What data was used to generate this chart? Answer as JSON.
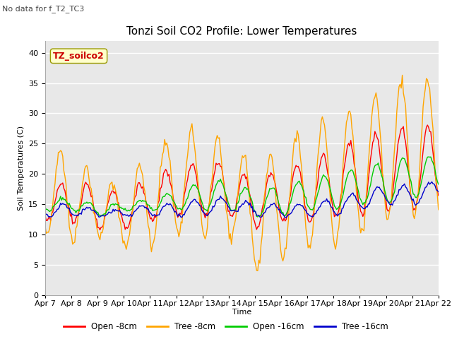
{
  "title": "Tonzi Soil CO2 Profile: Lower Temperatures",
  "subtitle": "No data for f_T2_TC3",
  "ylabel": "Soil Temperatures (C)",
  "xlabel": "Time",
  "legend_label": "TZ_soilco2",
  "legend_entries": [
    "Open -8cm",
    "Tree -8cm",
    "Open -16cm",
    "Tree -16cm"
  ],
  "legend_colors": [
    "#ff0000",
    "#ffa500",
    "#00cc00",
    "#0000cc"
  ],
  "ylim": [
    0,
    42
  ],
  "yticks": [
    0,
    5,
    10,
    15,
    20,
    25,
    30,
    35,
    40
  ],
  "xtick_labels": [
    "Apr 7",
    "Apr 8",
    "Apr 9",
    "Apr 10",
    "Apr 11",
    "Apr 12",
    "Apr 13",
    "Apr 14",
    "Apr 15",
    "Apr 16",
    "Apr 17",
    "Apr 18",
    "Apr 19",
    "Apr 20",
    "Apr 21",
    "Apr 22"
  ],
  "bg_color": "#e8e8e8",
  "fig_bg_color": "#ffffff",
  "line_width": 1.0,
  "title_fontsize": 11,
  "label_fontsize": 8,
  "tick_fontsize": 8
}
